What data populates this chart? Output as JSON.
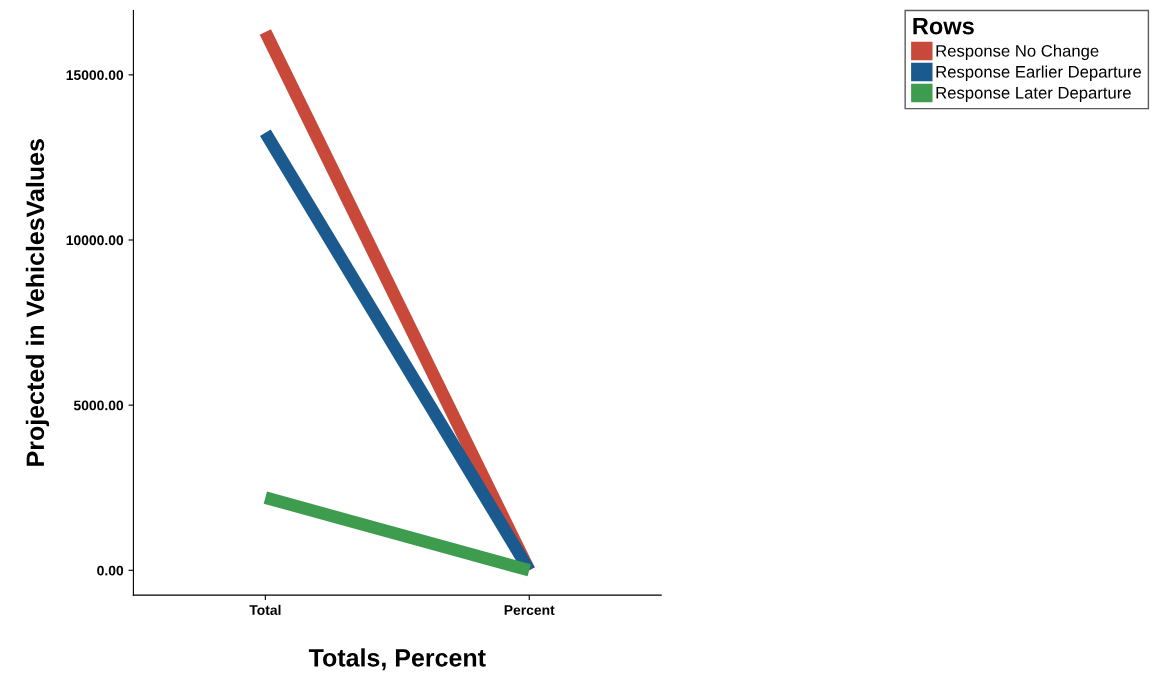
{
  "chart_data": {
    "type": "line",
    "xlabel": "Totals, Percent",
    "ylabel": "Projected in VehiclesValues",
    "legend_title": "Rows",
    "categories": [
      "Total",
      "Percent"
    ],
    "series": [
      {
        "name": "Response No Change",
        "color": "#c8493a",
        "values": [
          16300,
          0
        ]
      },
      {
        "name": "Response Earlier Departure",
        "color": "#1a5a8e",
        "values": [
          13250,
          0
        ]
      },
      {
        "name": "Response Later Departure",
        "color": "#3e9c4e",
        "values": [
          2200,
          0
        ]
      }
    ],
    "ylim": [
      -750,
      16950
    ],
    "yticks": [
      {
        "value": 0,
        "label": "0.00"
      },
      {
        "value": 5000,
        "label": "5000.00"
      },
      {
        "value": 10000,
        "label": "10000.00"
      },
      {
        "value": 15000,
        "label": "15000.00"
      }
    ],
    "legend": "top right",
    "grid": false
  }
}
